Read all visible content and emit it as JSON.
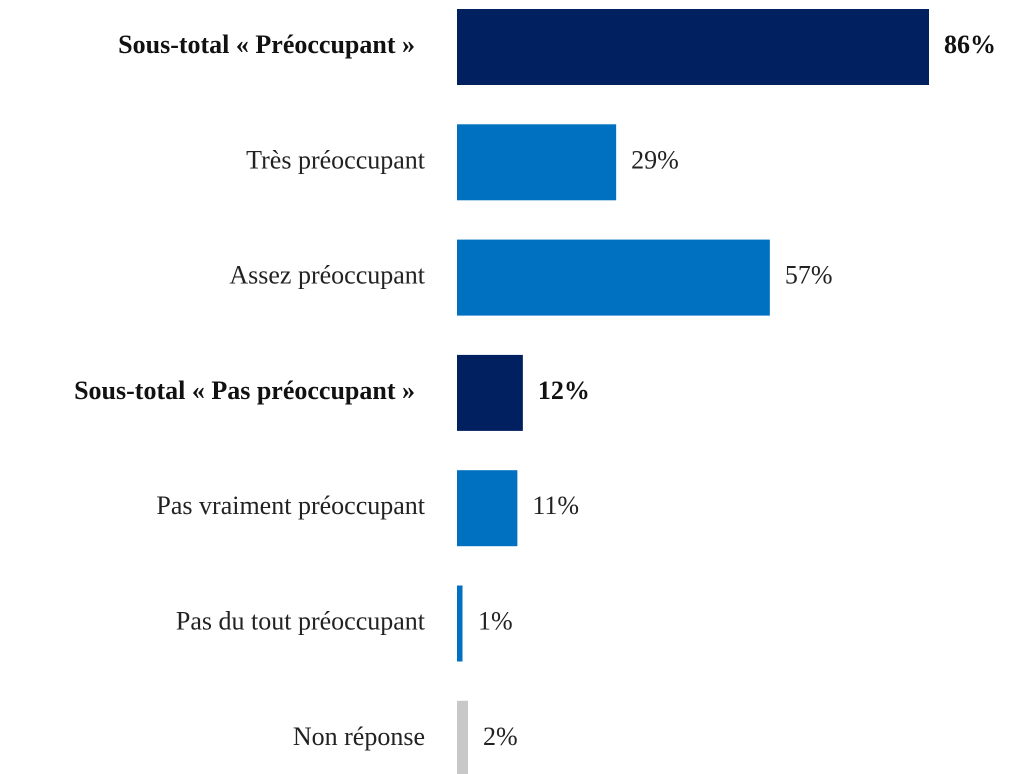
{
  "chart_data": {
    "type": "barh",
    "categories": [
      "Sous-total « Préoccupant »",
      "Très préoccupant",
      "Assez préoccupant",
      "Sous-total « Pas préoccupant »",
      "Pas vraiment préoccupant",
      "Pas du  tout préoccupant",
      "Non réponse"
    ],
    "values": [
      86,
      29,
      57,
      12,
      11,
      1,
      2
    ],
    "value_labels": [
      "86%",
      "29%",
      "57%",
      "12%",
      "11%",
      "1%",
      "2%"
    ],
    "colors": [
      "#002060",
      "#0070c0",
      "#0070c0",
      "#002060",
      "#0070c0",
      "#0070c0",
      "#c8c8c8"
    ],
    "bold": [
      true,
      false,
      false,
      true,
      false,
      false,
      false
    ]
  }
}
